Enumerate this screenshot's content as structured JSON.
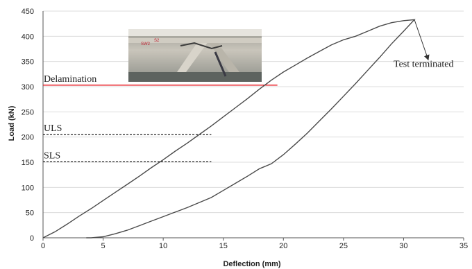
{
  "chart_data": {
    "type": "line",
    "xlabel": "Deflection (mm)",
    "ylabel": "Load (kN)",
    "xlim": [
      0,
      35
    ],
    "ylim": [
      0,
      450
    ],
    "xticks": [
      0,
      5,
      10,
      15,
      20,
      25,
      30,
      35
    ],
    "yticks": [
      0,
      50,
      100,
      150,
      200,
      250,
      300,
      350,
      400,
      450
    ],
    "grid": "horizontal",
    "series": [
      {
        "values": [
          [
            0,
            0
          ],
          [
            1,
            12
          ],
          [
            2,
            27
          ],
          [
            3,
            43
          ],
          [
            4,
            58
          ],
          [
            5,
            74
          ],
          [
            6,
            90
          ],
          [
            7,
            106
          ],
          [
            8,
            122
          ],
          [
            9,
            139
          ],
          [
            10,
            155
          ],
          [
            11,
            172
          ],
          [
            12,
            188
          ],
          [
            13,
            205
          ],
          [
            14,
            222
          ],
          [
            15,
            240
          ],
          [
            16,
            258
          ],
          [
            17,
            276
          ],
          [
            18,
            295
          ],
          [
            19,
            313
          ],
          [
            20,
            329
          ],
          [
            21,
            343
          ],
          [
            22,
            357
          ],
          [
            23,
            370
          ],
          [
            24,
            383
          ],
          [
            25,
            393
          ],
          [
            26,
            400
          ],
          [
            27,
            410
          ],
          [
            28,
            420
          ],
          [
            29,
            427
          ],
          [
            30,
            431
          ],
          [
            30.9,
            433
          ],
          [
            30,
            410
          ],
          [
            29,
            385
          ],
          [
            28,
            358
          ],
          [
            27,
            332
          ],
          [
            26,
            306
          ],
          [
            25,
            281
          ],
          [
            24,
            256
          ],
          [
            23,
            232
          ],
          [
            22,
            208
          ],
          [
            21,
            186
          ],
          [
            20,
            165
          ],
          [
            19,
            147
          ],
          [
            18,
            137
          ],
          [
            17,
            122
          ],
          [
            16,
            108
          ],
          [
            15,
            94
          ],
          [
            14,
            80
          ],
          [
            13,
            70
          ],
          [
            12,
            60
          ],
          [
            11,
            51
          ],
          [
            10,
            42
          ],
          [
            9,
            33
          ],
          [
            8,
            24
          ],
          [
            7,
            15
          ],
          [
            6,
            8
          ],
          [
            5,
            2
          ],
          [
            4,
            0
          ],
          [
            3.6,
            0
          ]
        ]
      }
    ],
    "reference_lines": [
      {
        "label": "Delamination",
        "y": 303,
        "x_range": [
          0,
          19.5
        ],
        "color": "#e8141c",
        "style": "solid"
      },
      {
        "label": "ULS",
        "y": 205,
        "x_range": [
          0,
          14
        ],
        "color": "#222222",
        "style": "dashed"
      },
      {
        "label": "SLS",
        "y": 151,
        "x_range": [
          0,
          14
        ],
        "color": "#222222",
        "style": "dashed"
      }
    ],
    "annotations": [
      {
        "text": "Test terminated",
        "points_to": [
          30.9,
          433
        ]
      }
    ],
    "inset_photo": {
      "description_icon": "specimen-photo"
    }
  }
}
